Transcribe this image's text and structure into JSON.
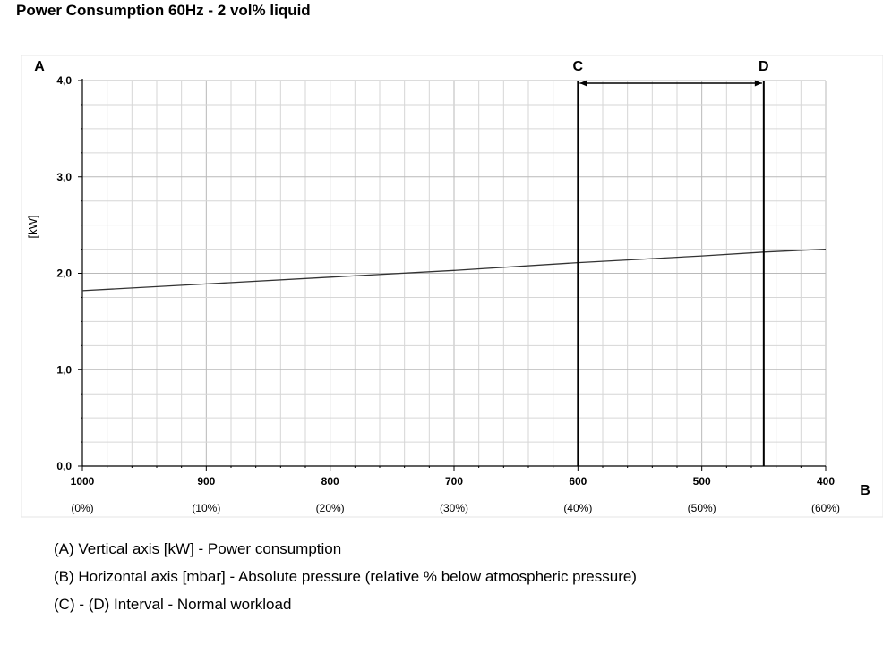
{
  "title": "Power Consumption 60Hz - 2 vol% liquid",
  "legend_lines": [
    "(A)  Vertical axis  [kW] - Power consumption",
    "(B)  Horizontal axis  [mbar] - Absolute pressure (relative % below atmospheric pressure)",
    "(C) - (D)  Interval - Normal workload"
  ],
  "chart_data": {
    "type": "line",
    "title": "Power Consumption 60Hz - 2 vol% liquid",
    "xlabel": "B",
    "ylabel": "[kW]",
    "x_axis_letter": "B",
    "y_axis_letter": "A",
    "x_reversed": true,
    "xlim": [
      1000,
      400
    ],
    "ylim": [
      0,
      4
    ],
    "grid": true,
    "x_ticks": [
      {
        "value": 1000,
        "label": "1000",
        "pct": "(0%)"
      },
      {
        "value": 900,
        "label": "900",
        "pct": "(10%)"
      },
      {
        "value": 800,
        "label": "800",
        "pct": "(20%)"
      },
      {
        "value": 700,
        "label": "700",
        "pct": "(30%)"
      },
      {
        "value": 600,
        "label": "600",
        "pct": "(40%)"
      },
      {
        "value": 500,
        "label": "500",
        "pct": "(50%)"
      },
      {
        "value": 400,
        "label": "400",
        "pct": "(60%)"
      }
    ],
    "y_ticks": [
      {
        "value": 0,
        "label": "0,0"
      },
      {
        "value": 1,
        "label": "1,0"
      },
      {
        "value": 2,
        "label": "2,0"
      },
      {
        "value": 3,
        "label": "3,0"
      },
      {
        "value": 4,
        "label": "4,0"
      }
    ],
    "series": [
      {
        "x": [
          1000,
          900,
          800,
          700,
          600,
          500,
          450,
          400
        ],
        "y": [
          1.82,
          1.89,
          1.96,
          2.03,
          2.11,
          2.18,
          2.22,
          2.25
        ]
      }
    ],
    "interval": {
      "start": {
        "x": 600,
        "label": "C"
      },
      "end": {
        "x": 450,
        "label": "D"
      }
    }
  }
}
